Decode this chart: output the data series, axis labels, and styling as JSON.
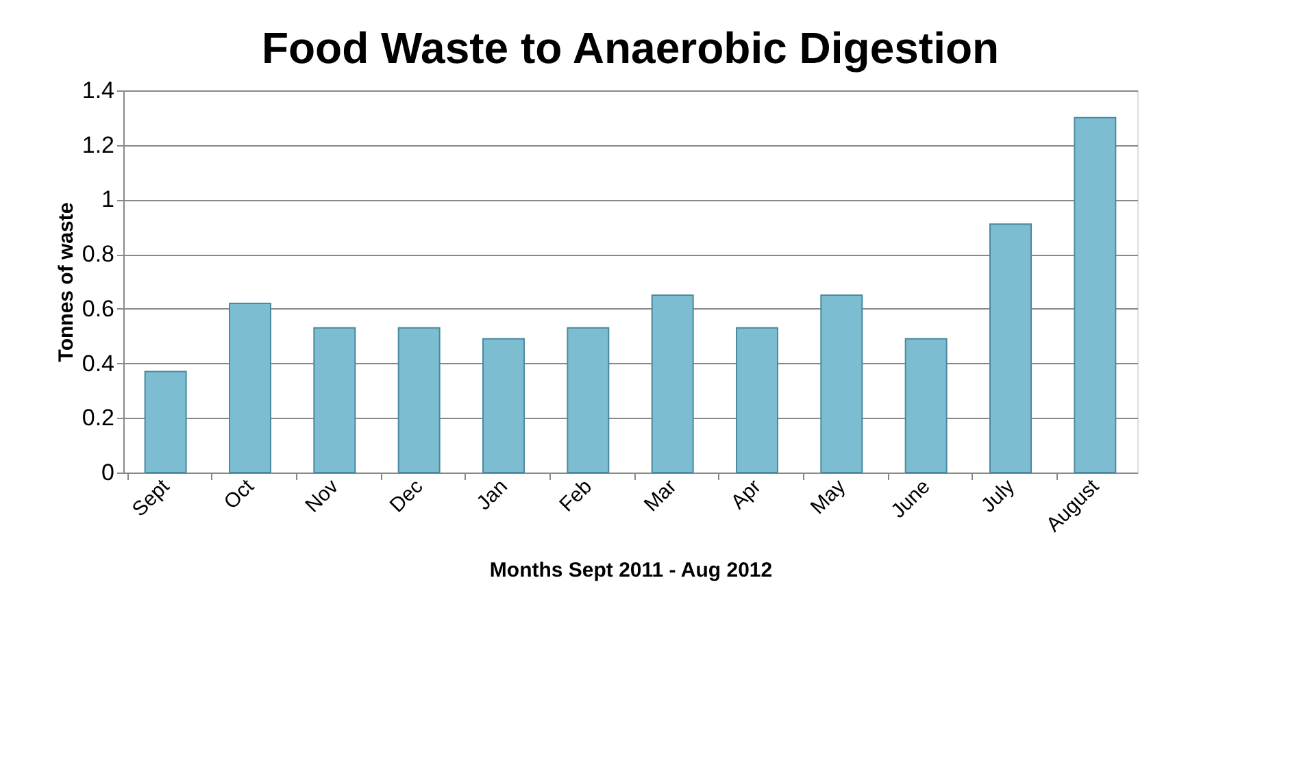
{
  "chart_data": {
    "type": "bar",
    "title": "Food Waste to Anaerobic Digestion",
    "xlabel": "Months Sept 2011 - Aug 2012",
    "ylabel": "Tonnes of waste",
    "categories": [
      "Sept",
      "Oct",
      "Nov",
      "Dec",
      "Jan",
      "Feb",
      "Mar",
      "Apr",
      "May",
      "June",
      "July",
      "August"
    ],
    "values": [
      0.37,
      0.62,
      0.53,
      0.53,
      0.49,
      0.53,
      0.65,
      0.53,
      0.65,
      0.49,
      0.91,
      1.3
    ],
    "color": "#7dbdd2",
    "ylim": [
      0,
      1.4
    ],
    "yticks": [
      0,
      0.2,
      0.4,
      0.6,
      0.8,
      1,
      1.2,
      1.4
    ],
    "grid": "y"
  }
}
